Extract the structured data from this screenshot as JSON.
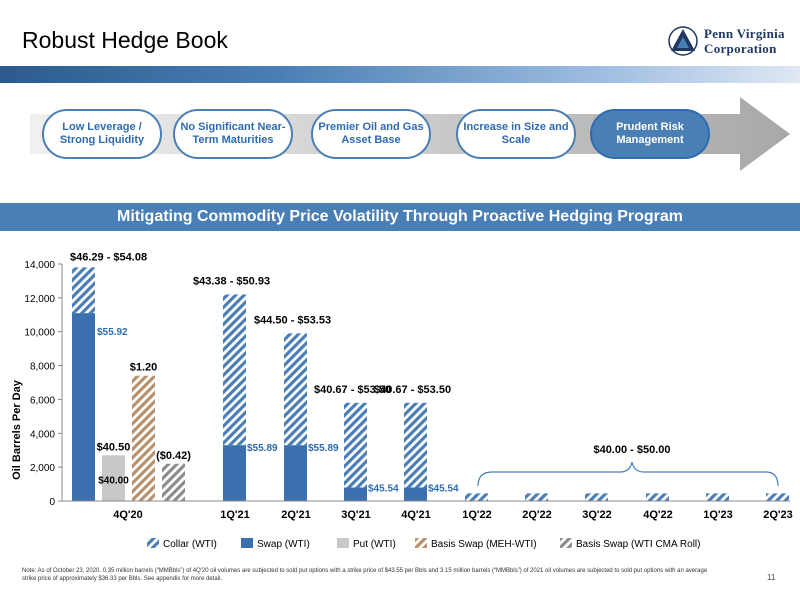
{
  "header": {
    "title": "Robust Hedge Book",
    "logo_line1": "Penn Virginia",
    "logo_line2": "Corporation"
  },
  "process_steps": [
    {
      "label": "Low Leverage / Strong Liquidity",
      "active": false
    },
    {
      "label": "No Significant Near-Term Maturities",
      "active": false
    },
    {
      "label": "Premier Oil and Gas Asset Base",
      "active": false
    },
    {
      "label": "Increase in Size and Scale",
      "active": false
    },
    {
      "label": "Prudent Risk Management",
      "active": true
    }
  ],
  "section_title": "Mitigating Commodity Price Volatility Through Proactive Hedging Program",
  "colors": {
    "accent": "#4a7fb5",
    "dark_blue": "#2e6bb0",
    "swap": "#3a70ad",
    "collar": "#4a7fb5",
    "put": "#c8c8c8",
    "basis_meh": "#b8906c",
    "basis_wti": "#8c8c8c"
  },
  "chart_data": {
    "type": "bar",
    "ylabel": "Oil Barrels Per Day",
    "xlabel": "",
    "ylim": [
      0,
      14000
    ],
    "yticks": [
      "0",
      "2,000",
      "4,000",
      "6,000",
      "8,000",
      "10,000",
      "12,000",
      "14,000"
    ],
    "categories": [
      "4Q'20",
      "1Q'21",
      "2Q'21",
      "3Q'21",
      "4Q'21",
      "1Q'22",
      "2Q'22",
      "3Q'22",
      "4Q'22",
      "1Q'23",
      "2Q'23"
    ],
    "bars": [
      {
        "category": "4Q'20",
        "series": "Swap (WTI)",
        "base": 0,
        "value": 11100,
        "inside_label": "$55.92",
        "top_label": ""
      },
      {
        "category": "4Q'20",
        "series": "Collar (WTI)",
        "base": 11100,
        "value": 2700,
        "inside_label": "",
        "top_label": "$46.29 - $54.08"
      },
      {
        "category": "4Q'20",
        "series": "Put (WTI)",
        "base": 0,
        "value": 2700,
        "inside_label": "$40.00",
        "top_label": "$40.50"
      },
      {
        "category": "4Q'20",
        "series": "Basis Swap (MEH-WTI)",
        "base": 0,
        "value": 7400,
        "inside_label": "",
        "top_label": "$1.20"
      },
      {
        "category": "4Q'20",
        "series": "Basis Swap (WTI CMA Roll)",
        "base": 0,
        "value": 2200,
        "inside_label": "",
        "top_label": "($0.42)"
      },
      {
        "category": "1Q'21",
        "series": "Swap (WTI)",
        "base": 0,
        "value": 3300,
        "inside_label": "$55.89",
        "top_label": ""
      },
      {
        "category": "1Q'21",
        "series": "Collar (WTI)",
        "base": 3300,
        "value": 8900,
        "inside_label": "",
        "top_label": "$43.38 - $50.93"
      },
      {
        "category": "2Q'21",
        "series": "Swap (WTI)",
        "base": 0,
        "value": 3300,
        "inside_label": "$55.89",
        "top_label": ""
      },
      {
        "category": "2Q'21",
        "series": "Collar (WTI)",
        "base": 3300,
        "value": 6600,
        "inside_label": "",
        "top_label": "$44.50 - $53.53"
      },
      {
        "category": "3Q'21",
        "series": "Swap (WTI)",
        "base": 0,
        "value": 800,
        "inside_label": "$45.54",
        "top_label": ""
      },
      {
        "category": "3Q'21",
        "series": "Collar (WTI)",
        "base": 800,
        "value": 5000,
        "inside_label": "",
        "top_label": "$40.67 - $53.50"
      },
      {
        "category": "4Q'21",
        "series": "Swap (WTI)",
        "base": 0,
        "value": 800,
        "inside_label": "$45.54",
        "top_label": ""
      },
      {
        "category": "4Q'21",
        "series": "Collar (WTI)",
        "base": 800,
        "value": 5000,
        "inside_label": "",
        "top_label": "$40.67 - $53.50"
      },
      {
        "category": "1Q'22",
        "series": "Collar (WTI)",
        "base": 0,
        "value": 450,
        "inside_label": "",
        "top_label": ""
      },
      {
        "category": "2Q'22",
        "series": "Collar (WTI)",
        "base": 0,
        "value": 450,
        "inside_label": "",
        "top_label": ""
      },
      {
        "category": "3Q'22",
        "series": "Collar (WTI)",
        "base": 0,
        "value": 450,
        "inside_label": "",
        "top_label": ""
      },
      {
        "category": "4Q'22",
        "series": "Collar (WTI)",
        "base": 0,
        "value": 450,
        "inside_label": "",
        "top_label": ""
      },
      {
        "category": "1Q'23",
        "series": "Collar (WTI)",
        "base": 0,
        "value": 450,
        "inside_label": "",
        "top_label": ""
      },
      {
        "category": "2Q'23",
        "series": "Collar (WTI)",
        "base": 0,
        "value": 450,
        "inside_label": "",
        "top_label": ""
      }
    ],
    "brace_label": "$40.00 - $50.00",
    "legend": [
      {
        "name": "Collar (WTI)",
        "style": "hatch-blue"
      },
      {
        "name": "Swap (WTI)",
        "style": "solid-blue"
      },
      {
        "name": "Put (WTI)",
        "style": "solid-gray"
      },
      {
        "name": "Basis Swap (MEH-WTI)",
        "style": "hatch-brown"
      },
      {
        "name": "Basis Swap (WTI CMA Roll)",
        "style": "hatch-gray"
      }
    ],
    "legend_position": "bottom",
    "grid": false
  },
  "footer": {
    "note": "Note: As of October 23, 2020. 0.35 million barrels (“MMBbls”) of 4Q'20 oil volumes are subjected to sold put options with a strike price of $43.55 per Bbls and 3.15 million barrels (“MMBbls”) of 2021 oil volumes are subjected to sold put options with an average strike price of approximately $36.33 per Bbls. See appendix for more detail.",
    "page_number": "11"
  }
}
